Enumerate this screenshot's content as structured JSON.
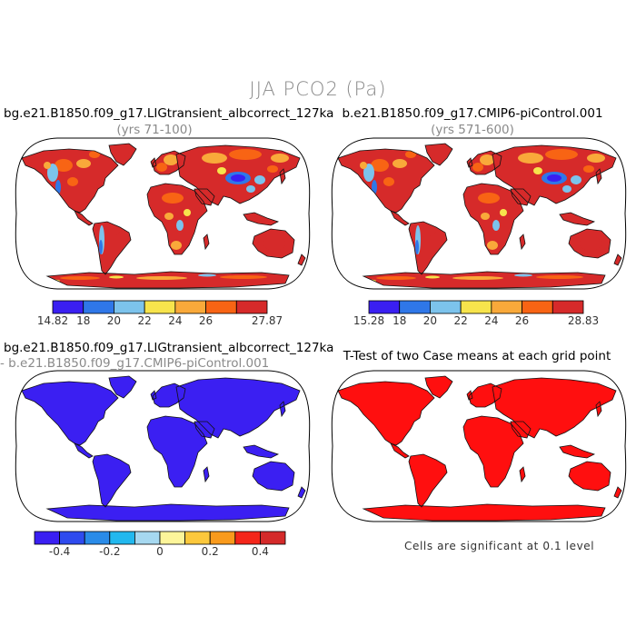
{
  "figure": {
    "main_title": "JJA PCO2 (Pa)",
    "note": "Cells are significant at 0.1 level"
  },
  "panels": [
    {
      "title": "bg.e21.B1850.f09_g17.LIGtransient_albcorrect_127ka",
      "subtitle": "(yrs 71-100)",
      "kind": "field",
      "colorbar": {
        "colors": [
          "#3a1ff2",
          "#2f77e8",
          "#7cc3ec",
          "#f7e44c",
          "#f9a93a",
          "#f86414",
          "#d62a2a"
        ],
        "labels": [
          "14.82",
          "18",
          "20",
          "22",
          "24",
          "26",
          "27.87"
        ]
      }
    },
    {
      "title": "b.e21.B1850.f09_g17.CMIP6-piControl.001",
      "subtitle": "(yrs 571-600)",
      "kind": "field",
      "colorbar": {
        "colors": [
          "#3a1ff2",
          "#2f77e8",
          "#7cc3ec",
          "#f7e44c",
          "#f9a93a",
          "#f86414",
          "#d62a2a"
        ],
        "labels": [
          "15.28",
          "18",
          "20",
          "22",
          "24",
          "26",
          "28.83"
        ]
      }
    },
    {
      "title": "bg.e21.B1850.f09_g17.LIGtransient_albcorrect_127ka",
      "subtitle": "- b.e21.B1850.f09_g17.CMIP6-piControl.001",
      "kind": "difference",
      "land_color": "#3b1ff2",
      "colorbar": {
        "colors": [
          "#3a1ff2",
          "#2f4bee",
          "#2a8be8",
          "#22b8ee",
          "#a6d8f0",
          "#fdf59a",
          "#fcc83c",
          "#f99a1c",
          "#f4261a",
          "#d42a2a"
        ],
        "labels": [
          "-0.4",
          "-0.2",
          "0",
          "0.2",
          "0.4"
        ]
      }
    },
    {
      "title": "T-Test of two Case means at each grid point",
      "kind": "ttest",
      "land_color": "#ff0f0f"
    }
  ]
}
